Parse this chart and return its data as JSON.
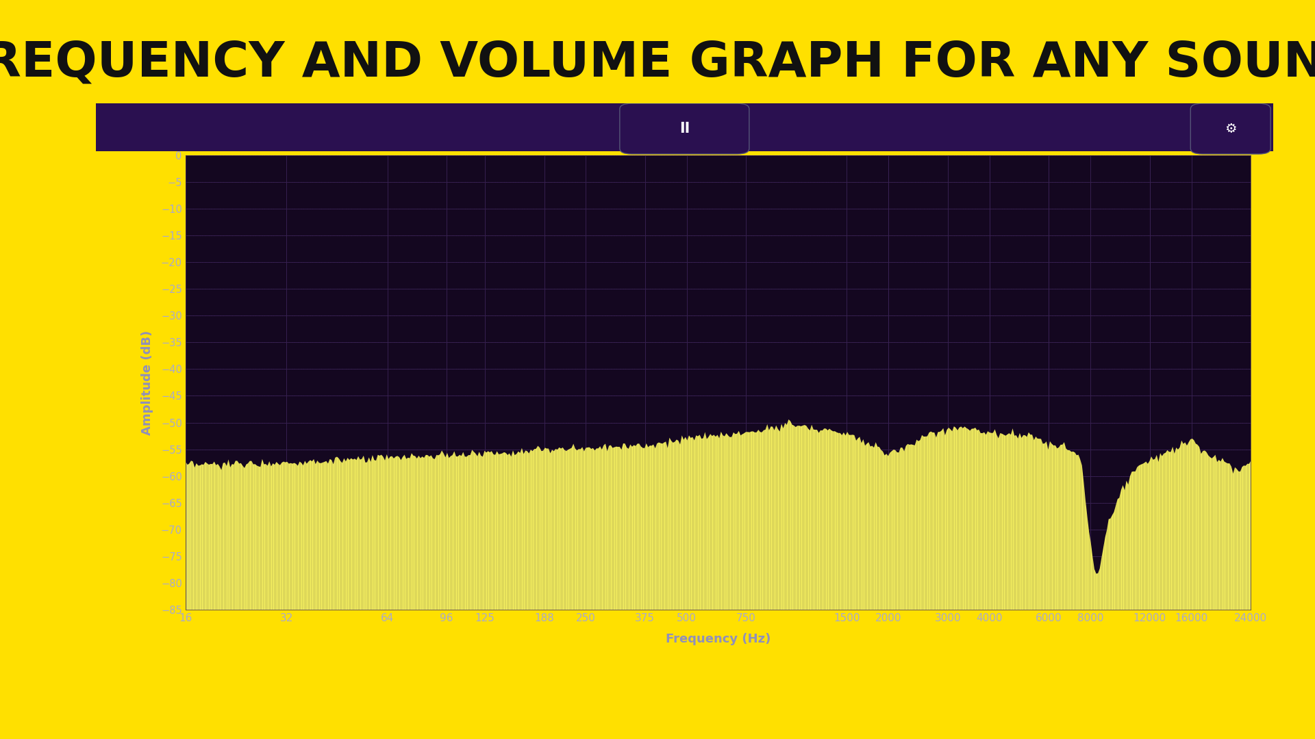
{
  "title": "FREQUENCY AND VOLUME GRAPH FOR ANY SOUND",
  "title_fontsize": 52,
  "title_color": "#111111",
  "bg_outer": "#FFE000",
  "bg_panel": "#1e0a38",
  "bg_panel_top": "#2a1050",
  "bg_plot": "#140720",
  "bar_color": "#F5F060",
  "ylabel": "Amplitude (dB)",
  "xlabel": "Frequency (Hz)",
  "label_color": "#9090bb",
  "tick_color": "#aaaacc",
  "grid_color": "#3a2255",
  "ylim": [
    -85,
    0
  ],
  "yticks": [
    0,
    -5,
    -10,
    -15,
    -20,
    -25,
    -30,
    -35,
    -40,
    -45,
    -50,
    -55,
    -60,
    -65,
    -70,
    -75,
    -80,
    -85
  ],
  "freq_labels": [
    "16",
    "32",
    "64",
    "96",
    "125",
    "188",
    "250",
    "375",
    "500",
    "750",
    "1500",
    "2000",
    "3000",
    "4000",
    "6000",
    "8000",
    "12000",
    "16000",
    "24000"
  ],
  "freq_values": [
    16,
    32,
    64,
    96,
    125,
    188,
    250,
    375,
    500,
    750,
    1500,
    2000,
    3000,
    4000,
    6000,
    8000,
    12000,
    16000,
    24000
  ],
  "key_freqs": [
    16,
    50,
    100,
    200,
    400,
    500,
    700,
    900,
    1000,
    1200,
    1500,
    1800,
    2000,
    2500,
    3000,
    3500,
    4000,
    5000,
    6000,
    7000,
    7500,
    8000,
    8200,
    8500,
    9000,
    9500,
    10000,
    10500,
    11000,
    12000,
    13000,
    14000,
    15000,
    16000,
    17000,
    18000,
    20000,
    22000,
    24000
  ],
  "key_dbs": [
    -58,
    -57,
    -56,
    -55,
    -54,
    -53,
    -52,
    -51,
    -50,
    -51,
    -52,
    -54,
    -56,
    -53,
    -51,
    -51,
    -52,
    -52,
    -54,
    -55,
    -57,
    -73,
    -78,
    -77,
    -69,
    -65,
    -62,
    -60,
    -58,
    -57,
    -56,
    -55,
    -54,
    -53,
    -55,
    -56,
    -57,
    -59,
    -57
  ],
  "pause_icon": "II",
  "gear_icon": "⚙"
}
